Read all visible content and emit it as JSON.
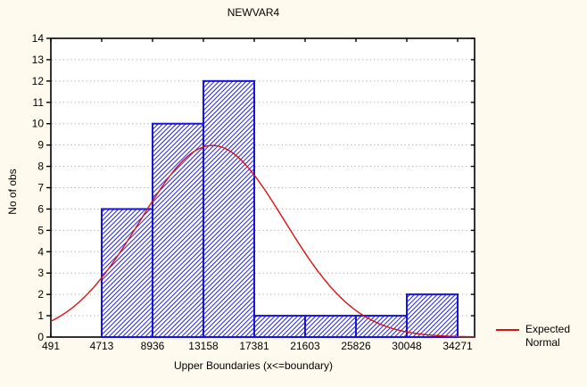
{
  "chart_data": {
    "type": "histogram",
    "title": "NEWVAR4",
    "xlabel": "Upper Boundaries (x<=boundary)",
    "ylabel": "No of obs",
    "boundaries": [
      491,
      4713,
      8936,
      13158,
      17381,
      21603,
      25826,
      30048,
      34271
    ],
    "counts": [
      0,
      6,
      10,
      12,
      1,
      1,
      1,
      2
    ],
    "ylim": [
      0,
      14
    ],
    "ytick_step": 1,
    "grid": "horizontal-dotted",
    "legend_position": "right-outside",
    "legend_lines": [
      "Expected",
      "Normal"
    ],
    "series": [
      {
        "name": "Expected Normal",
        "type": "normal-curve",
        "mean": 13900,
        "sd": 6000,
        "peak": 8.98
      }
    ]
  },
  "colors": {
    "background": "#FFFAEE",
    "plot_background": "#FFFFFF",
    "axis": "#000000",
    "grid": "#9A9A9A",
    "bar_edge": "#1414DC",
    "bar_hatch": "#1E1EDC",
    "bar_fill": "#FFFFFF",
    "curve": "#DC1010",
    "text": "#000000"
  }
}
